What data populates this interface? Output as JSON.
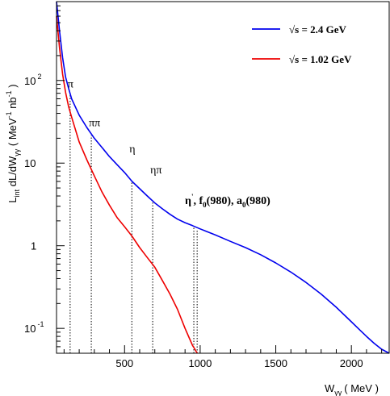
{
  "chart_data": {
    "type": "line",
    "xlabel_main": "W",
    "xlabel_sub": "γγ",
    "xlabel_unit": "( MeV )",
    "ylabel_parts": [
      "L",
      "int",
      " dL/dW",
      "γγ",
      " ( MeV",
      "-1",
      " nb",
      "-1",
      " )"
    ],
    "xlim": [
      50,
      2250
    ],
    "ylim": [
      0.05,
      900
    ],
    "yscale": "log",
    "x_ticks": [
      "500",
      "1000",
      "1500",
      "2000"
    ],
    "y_ticks": [
      {
        "value": 0.1,
        "base": "10",
        "exp": "-1"
      },
      {
        "value": 1,
        "base": "1",
        "exp": ""
      },
      {
        "value": 10,
        "base": "10",
        "exp": ""
      },
      {
        "value": 100,
        "base": "10",
        "exp": "2"
      }
    ],
    "legend_position": "top-right",
    "series": [
      {
        "name": "√s = 2.4 GeV",
        "color": "#0000ee",
        "x": [
          50,
          70,
          90,
          110,
          130,
          150,
          200,
          250,
          300,
          350,
          400,
          450,
          500,
          550,
          600,
          650,
          700,
          750,
          800,
          850,
          900,
          950,
          1000,
          1100,
          1200,
          1300,
          1400,
          1500,
          1600,
          1700,
          1800,
          1900,
          2000,
          2050,
          2100,
          2150,
          2200,
          2250
        ],
        "y": [
          900,
          400,
          190,
          110,
          80,
          60,
          38,
          27,
          20,
          15.5,
          12,
          9.6,
          7.7,
          6.0,
          4.9,
          4.0,
          3.3,
          2.8,
          2.4,
          2.1,
          1.9,
          1.75,
          1.6,
          1.35,
          1.13,
          0.95,
          0.78,
          0.62,
          0.48,
          0.36,
          0.26,
          0.18,
          0.12,
          0.098,
          0.08,
          0.066,
          0.056,
          0.05
        ]
      },
      {
        "name": "√s = 1.02 GeV",
        "color": "#ee0000",
        "x": [
          50,
          70,
          90,
          110,
          130,
          150,
          200,
          250,
          300,
          350,
          400,
          450,
          500,
          550,
          600,
          650,
          700,
          750,
          800,
          850,
          900,
          930,
          950,
          965,
          975,
          982
        ],
        "y": [
          600,
          250,
          120,
          72,
          48,
          36,
          18,
          11,
          7.0,
          4.5,
          3.1,
          2.2,
          1.7,
          1.3,
          0.95,
          0.72,
          0.55,
          0.38,
          0.26,
          0.17,
          0.1,
          0.075,
          0.062,
          0.056,
          0.052,
          0.05
        ]
      }
    ],
    "annotations": [
      {
        "text": "π",
        "x": 140,
        "line_x": [
          140
        ],
        "label_y": 82
      },
      {
        "text": "ππ",
        "x": 280,
        "line_x": [
          280
        ],
        "label_y": 28
      },
      {
        "text": "η",
        "x": 548,
        "line_x": [
          548
        ],
        "label_y": 13.5
      },
      {
        "text": "ηπ",
        "x": 686,
        "line_x": [
          686
        ],
        "label_y": 7.5
      },
      {
        "text": "η', f0(980), a0(980)",
        "x": 958,
        "line_x": [
          958,
          980
        ],
        "label_y": 3.2
      }
    ],
    "annotation_rich": {
      "eta_prime": "η",
      "prime": "'",
      "sep": ", ",
      "f0": "f",
      "f0_sub": "0",
      "f0_mass": "(980), ",
      "a0": "a",
      "a0_sub": "0",
      "a0_mass": "(980)"
    }
  }
}
